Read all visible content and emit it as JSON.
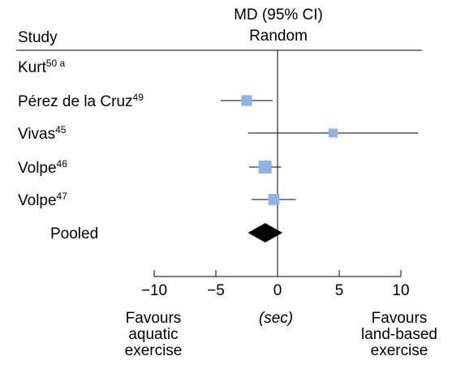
{
  "chart_data": {
    "type": "forest",
    "header": {
      "study_label": "Study",
      "effect_line1": "MD (95% CI)",
      "effect_line2": "Random"
    },
    "studies": [
      {
        "name": "Kurt",
        "sup": "50 a",
        "md": null,
        "lower": null,
        "upper": null,
        "weight": 0
      },
      {
        "name": "Pérez de la Cruz",
        "sup": "49",
        "md": -2.5,
        "lower": -4.6,
        "upper": -0.4,
        "weight": 0.7
      },
      {
        "name": "Vivas",
        "sup": "45",
        "md": 4.5,
        "lower": -2.4,
        "upper": 11.4,
        "weight": 0.45
      },
      {
        "name": "Volpe",
        "sup": "46",
        "md": -1.0,
        "lower": -2.3,
        "upper": 0.3,
        "weight": 1.0
      },
      {
        "name": "Volpe",
        "sup": "47",
        "md": -0.3,
        "lower": -2.1,
        "upper": 1.5,
        "weight": 0.75
      }
    ],
    "pooled": {
      "label": "Pooled",
      "md": -1.0,
      "lower": -2.4,
      "upper": 0.4
    },
    "x_axis": {
      "ticks": [
        -10,
        -5,
        0,
        5,
        10
      ],
      "tick_labels": [
        "−10",
        "−5",
        "0",
        "5",
        "10"
      ],
      "range": [
        -10,
        10
      ],
      "unit_label": "(sec)"
    },
    "favours_left": [
      "Favours",
      "aquatic",
      "exercise"
    ],
    "favours_right": [
      "Favours",
      "land-based",
      "exercise"
    ],
    "colors": {
      "marker": "#8eb4e3",
      "diamond": "#000000",
      "line": "#000000"
    }
  }
}
